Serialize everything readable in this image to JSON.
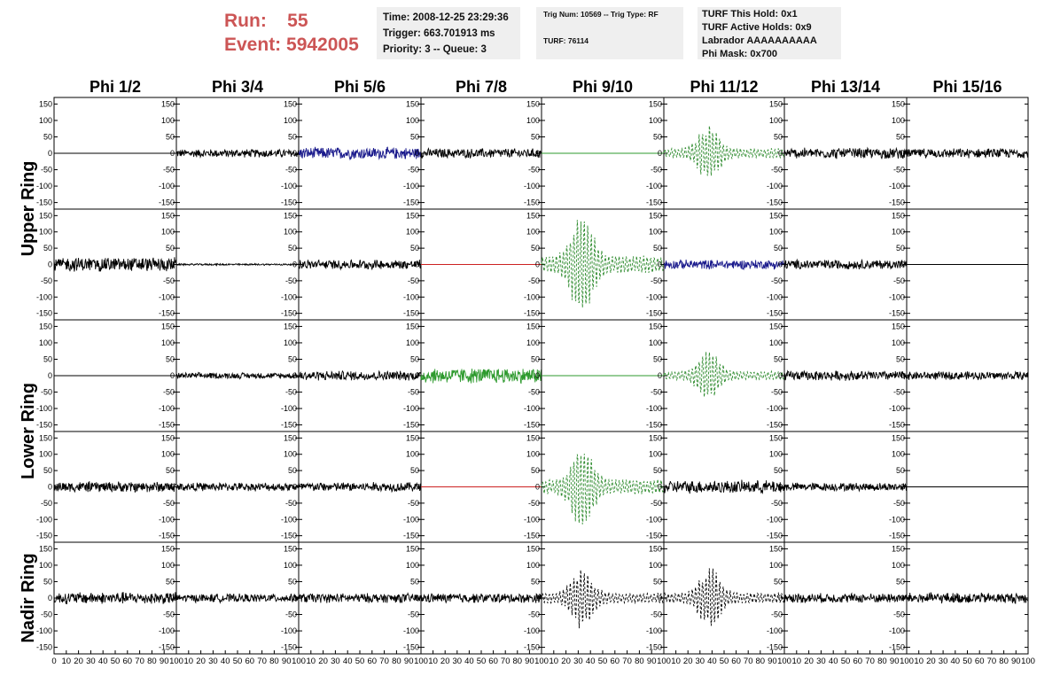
{
  "header": {
    "run_line": "Run:    55",
    "event_line": "Event: 5942005"
  },
  "info_boxes": {
    "time": [
      "Time: 2008-12-25 23:29:36",
      "Trigger: 663.701913 ms",
      "Priority: 3 -- Queue: 3"
    ],
    "trig": [
      "Trig Num: 10569 -- Trig Type: RF",
      "TURF: 76114"
    ],
    "turf": [
      "TURF This Hold: 0x1",
      "TURF Active Holds: 0x9",
      "Labrador AAAAAAAAAA",
      "Phi Mask: 0x700"
    ]
  },
  "chart_data": {
    "type": "line",
    "columns": [
      "Phi 1/2",
      "Phi 3/4",
      "Phi 5/6",
      "Phi 7/8",
      "Phi 9/10",
      "Phi 11/12",
      "Phi 13/14",
      "Phi 15/16"
    ],
    "ring_labels": [
      "Upper Ring",
      "Lower Ring",
      "Nadir Ring"
    ],
    "xlim": [
      0,
      100
    ],
    "ylim": [
      -170,
      170
    ],
    "x_ticks": [
      0,
      10,
      20,
      30,
      40,
      50,
      60,
      70,
      80,
      90,
      100
    ],
    "y_ticks": [
      -150,
      -100,
      -50,
      0,
      50,
      100,
      150
    ],
    "colors": {
      "black": "#000000",
      "blue": "#1a1a8c",
      "green": "#2e9a2e",
      "dashed_green": "#2e8b2e",
      "red": "#cc2222"
    },
    "rows": [
      [
        {
          "style": "flat",
          "color": "black",
          "amp": 0
        },
        {
          "style": "noise",
          "color": "black",
          "amp": 14
        },
        {
          "style": "noise",
          "color": "blue",
          "amp": 20
        },
        {
          "style": "noise",
          "color": "black",
          "amp": 16
        },
        {
          "style": "flat",
          "color": "green",
          "amp": 0
        },
        {
          "style": "pulse",
          "color": "dashed_green",
          "amp": 85,
          "center": 37
        },
        {
          "style": "noise",
          "color": "black",
          "amp": 18
        },
        {
          "style": "noise",
          "color": "black",
          "amp": 16
        }
      ],
      [
        {
          "style": "noise",
          "color": "black",
          "amp": 24
        },
        {
          "style": "noise",
          "color": "black",
          "amp": 3
        },
        {
          "style": "noise",
          "color": "black",
          "amp": 16
        },
        {
          "style": "flat",
          "color": "red",
          "amp": 0
        },
        {
          "style": "pulse",
          "color": "dashed_green",
          "amp": 155,
          "center": 33
        },
        {
          "style": "noise",
          "color": "blue",
          "amp": 16
        },
        {
          "style": "noise",
          "color": "black",
          "amp": 16
        },
        {
          "style": "flat",
          "color": "black",
          "amp": 0
        }
      ],
      [
        {
          "style": "flat",
          "color": "black",
          "amp": 0
        },
        {
          "style": "noise",
          "color": "black",
          "amp": 10
        },
        {
          "style": "noise",
          "color": "black",
          "amp": 16
        },
        {
          "style": "noise",
          "color": "green",
          "amp": 26
        },
        {
          "style": "flat",
          "color": "green",
          "amp": 0
        },
        {
          "style": "pulse",
          "color": "dashed_green",
          "amp": 75,
          "center": 37
        },
        {
          "style": "noise",
          "color": "black",
          "amp": 16
        },
        {
          "style": "noise",
          "color": "black",
          "amp": 14
        }
      ],
      [
        {
          "style": "noise",
          "color": "black",
          "amp": 18
        },
        {
          "style": "noise",
          "color": "black",
          "amp": 14
        },
        {
          "style": "noise",
          "color": "black",
          "amp": 16
        },
        {
          "style": "flat",
          "color": "red",
          "amp": 0
        },
        {
          "style": "pulse",
          "color": "dashed_green",
          "amp": 130,
          "center": 33
        },
        {
          "style": "noise",
          "color": "black",
          "amp": 22
        },
        {
          "style": "noise",
          "color": "black",
          "amp": 14
        },
        {
          "style": "flat",
          "color": "black",
          "amp": 0
        }
      ],
      [
        {
          "style": "noise",
          "color": "black",
          "amp": 20
        },
        {
          "style": "noise",
          "color": "black",
          "amp": 14
        },
        {
          "style": "noise",
          "color": "black",
          "amp": 16
        },
        {
          "style": "noise",
          "color": "black",
          "amp": 16
        },
        {
          "style": "pulse",
          "color": "black_dashed",
          "amp": 90,
          "center": 33
        },
        {
          "style": "pulse",
          "color": "black_dashed",
          "amp": 90,
          "center": 38
        },
        {
          "style": "noise",
          "color": "black",
          "amp": 16
        },
        {
          "style": "noise",
          "color": "black",
          "amp": 18
        }
      ]
    ]
  }
}
